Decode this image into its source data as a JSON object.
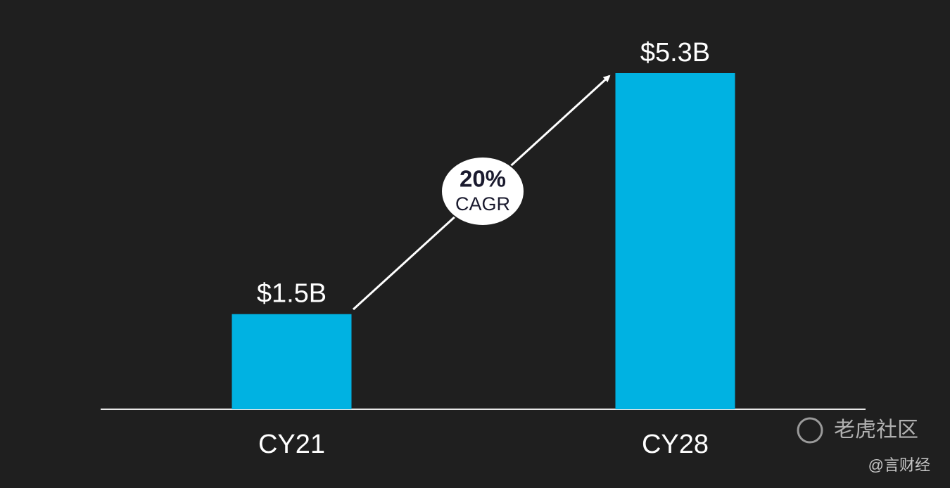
{
  "chart_data": {
    "type": "bar",
    "categories": [
      "CY21",
      "CY28"
    ],
    "values": [
      1.5,
      5.3
    ],
    "value_labels": [
      "$1.5B",
      "$5.3B"
    ],
    "color": "#00b2e2",
    "annotation": {
      "value": "20%",
      "label": "CAGR"
    }
  },
  "watermark": {
    "brand": "老虎社区",
    "author": "@言财经"
  }
}
